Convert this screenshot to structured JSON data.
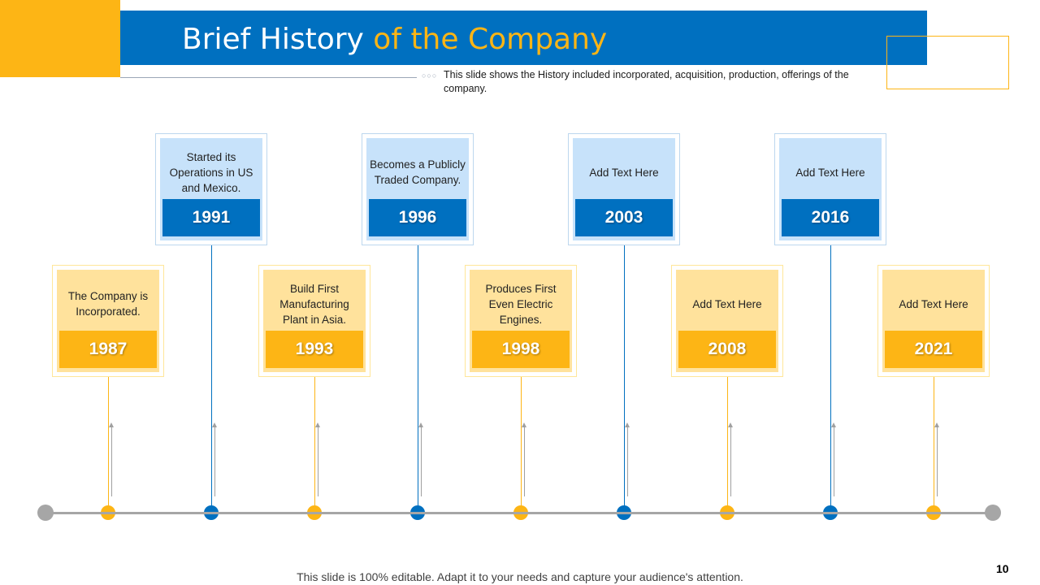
{
  "header": {
    "title_main": "Brief History",
    "title_accent": "of the Company",
    "subtitle": "This slide shows the History included incorporated, acquisition, production, offerings of the company."
  },
  "timeline": [
    {
      "year": "1987",
      "text": "The Company is Incorporated.",
      "color": "yellow"
    },
    {
      "year": "1991",
      "text": "Started its Operations in US and Mexico.",
      "color": "blue"
    },
    {
      "year": "1993",
      "text": "Build First Manufacturing Plant in Asia.",
      "color": "yellow"
    },
    {
      "year": "1996",
      "text": "Becomes a Publicly Traded Company.",
      "color": "blue"
    },
    {
      "year": "1998",
      "text": "Produces First Even Electric Engines.",
      "color": "yellow"
    },
    {
      "year": "2003",
      "text": "Add Text Here",
      "color": "blue"
    },
    {
      "year": "2008",
      "text": "Add Text Here",
      "color": "yellow"
    },
    {
      "year": "2016",
      "text": "Add Text Here",
      "color": "blue"
    },
    {
      "year": "2021",
      "text": "Add Text Here",
      "color": "yellow"
    }
  ],
  "colors": {
    "blue": "#0070C0",
    "yellow": "#FDB515",
    "light_blue": "#C7E2FA",
    "light_yellow": "#FFE29C",
    "gray": "#A6A6A6"
  },
  "footer": {
    "note": "This slide is 100% editable. Adapt it to your needs and capture your audience's attention.",
    "page_number": "10"
  }
}
